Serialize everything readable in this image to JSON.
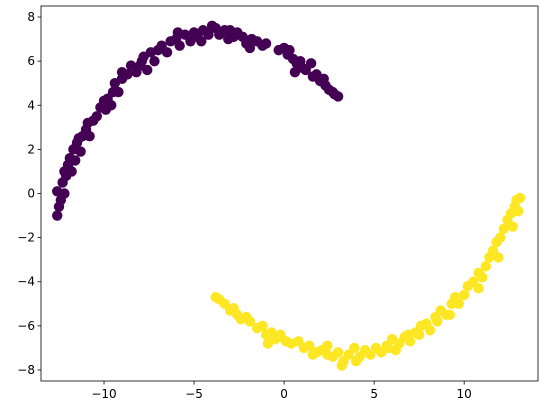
{
  "chart_data": {
    "type": "scatter",
    "title": "",
    "xlabel": "",
    "ylabel": "",
    "xlim": [
      -13.5,
      14.1
    ],
    "ylim": [
      -8.5,
      8.5
    ],
    "xticks": [
      -10,
      -5,
      0,
      5,
      10
    ],
    "yticks": [
      -8,
      -6,
      -4,
      -2,
      0,
      2,
      4,
      6,
      8
    ],
    "xtick_labels": [
      "−10",
      "−5",
      "0",
      "5",
      "10"
    ],
    "ytick_labels": [
      "−8",
      "−6",
      "−4",
      "−2",
      "0",
      "2",
      "4",
      "6",
      "8"
    ],
    "grid": false,
    "legend": "none",
    "series": [
      {
        "color": "#440154",
        "points": [
          [
            -12.6,
            -1.0
          ],
          [
            -12.5,
            -0.6
          ],
          [
            -12.4,
            -0.3
          ],
          [
            -12.6,
            0.1
          ],
          [
            -12.2,
            0.0
          ],
          [
            -12.3,
            0.5
          ],
          [
            -12.1,
            0.8
          ],
          [
            -12.2,
            1.0
          ],
          [
            -12.0,
            1.3
          ],
          [
            -11.8,
            1.0
          ],
          [
            -11.9,
            1.6
          ],
          [
            -11.6,
            1.5
          ],
          [
            -11.7,
            2.0
          ],
          [
            -11.5,
            2.3
          ],
          [
            -11.3,
            1.9
          ],
          [
            -11.2,
            2.6
          ],
          [
            -11.0,
            2.9
          ],
          [
            -10.8,
            2.6
          ],
          [
            -10.9,
            3.2
          ],
          [
            -10.6,
            3.3
          ],
          [
            -10.4,
            3.5
          ],
          [
            -10.2,
            3.9
          ],
          [
            -9.9,
            3.8
          ],
          [
            -9.8,
            4.3
          ],
          [
            -9.6,
            4.0
          ],
          [
            -9.5,
            4.6
          ],
          [
            -9.2,
            4.6
          ],
          [
            -9.4,
            5.0
          ],
          [
            -9.0,
            5.2
          ],
          [
            -8.7,
            5.4
          ],
          [
            -9.0,
            5.5
          ],
          [
            -8.5,
            5.8
          ],
          [
            -8.2,
            5.5
          ],
          [
            -8.0,
            5.8
          ],
          [
            -7.8,
            6.2
          ],
          [
            -7.6,
            5.6
          ],
          [
            -7.4,
            6.4
          ],
          [
            -7.2,
            6.0
          ],
          [
            -7.0,
            6.5
          ],
          [
            -6.8,
            6.7
          ],
          [
            -6.5,
            6.4
          ],
          [
            -6.3,
            6.9
          ],
          [
            -6.0,
            7.0
          ],
          [
            -5.8,
            6.7
          ],
          [
            -5.5,
            7.2
          ],
          [
            -5.2,
            6.9
          ],
          [
            -5.0,
            7.3
          ],
          [
            -4.8,
            7.1
          ],
          [
            -4.5,
            7.4
          ],
          [
            -4.2,
            7.2
          ],
          [
            -4.0,
            7.6
          ],
          [
            -3.8,
            7.5
          ],
          [
            -3.6,
            7.2
          ],
          [
            -3.3,
            7.4
          ],
          [
            -3.0,
            7.4
          ],
          [
            -2.8,
            7.1
          ],
          [
            -2.6,
            7.3
          ],
          [
            -2.3,
            7.1
          ],
          [
            -2.1,
            6.8
          ],
          [
            -1.8,
            7.0
          ],
          [
            -1.5,
            6.9
          ],
          [
            -1.2,
            6.7
          ],
          [
            -1.0,
            6.8
          ],
          [
            -0.3,
            6.5
          ],
          [
            0.0,
            6.6
          ],
          [
            0.2,
            6.3
          ],
          [
            0.3,
            6.5
          ],
          [
            0.5,
            6.1
          ],
          [
            0.7,
            5.9
          ],
          [
            0.9,
            6.0
          ],
          [
            1.0,
            5.7
          ],
          [
            1.2,
            5.6
          ],
          [
            1.5,
            5.9
          ],
          [
            1.6,
            5.3
          ],
          [
            1.8,
            5.4
          ],
          [
            2.0,
            5.1
          ],
          [
            2.2,
            5.2
          ],
          [
            2.3,
            4.9
          ],
          [
            2.5,
            4.7
          ],
          [
            2.7,
            4.6
          ],
          [
            2.8,
            4.5
          ],
          [
            3.0,
            4.4
          ],
          [
            -7.9,
            6.0
          ],
          [
            -5.9,
            7.3
          ],
          [
            -4.6,
            6.9
          ],
          [
            -3.1,
            7.0
          ],
          [
            -1.9,
            6.6
          ],
          [
            0.6,
            5.5
          ],
          [
            -10.0,
            4.2
          ],
          [
            -11.4,
            2.5
          ]
        ]
      },
      {
        "color": "#fde725",
        "points": [
          [
            -3.8,
            -4.7
          ],
          [
            -3.6,
            -4.8
          ],
          [
            -3.3,
            -5.0
          ],
          [
            -3.0,
            -5.3
          ],
          [
            -2.8,
            -5.2
          ],
          [
            -2.6,
            -5.5
          ],
          [
            -2.4,
            -5.7
          ],
          [
            -2.1,
            -5.6
          ],
          [
            -1.9,
            -5.8
          ],
          [
            -1.5,
            -6.1
          ],
          [
            -1.2,
            -6.0
          ],
          [
            -1.0,
            -6.4
          ],
          [
            -0.7,
            -6.3
          ],
          [
            -0.5,
            -6.6
          ],
          [
            -0.2,
            -6.5
          ],
          [
            0.1,
            -6.7
          ],
          [
            0.4,
            -6.8
          ],
          [
            0.8,
            -6.7
          ],
          [
            1.1,
            -7.0
          ],
          [
            1.4,
            -6.9
          ],
          [
            1.8,
            -7.2
          ],
          [
            2.1,
            -7.1
          ],
          [
            2.4,
            -7.3
          ],
          [
            2.7,
            -7.4
          ],
          [
            3.0,
            -7.2
          ],
          [
            3.3,
            -7.6
          ],
          [
            3.2,
            -7.8
          ],
          [
            3.6,
            -7.3
          ],
          [
            3.9,
            -7.0
          ],
          [
            4.2,
            -7.4
          ],
          [
            4.5,
            -7.1
          ],
          [
            4.8,
            -7.3
          ],
          [
            5.1,
            -7.0
          ],
          [
            5.4,
            -7.2
          ],
          [
            5.7,
            -6.9
          ],
          [
            6.0,
            -6.6
          ],
          [
            6.2,
            -7.1
          ],
          [
            6.4,
            -6.8
          ],
          [
            6.7,
            -6.5
          ],
          [
            7.0,
            -6.7
          ],
          [
            7.3,
            -6.3
          ],
          [
            7.6,
            -6.0
          ],
          [
            7.9,
            -5.9
          ],
          [
            8.1,
            -6.2
          ],
          [
            8.4,
            -5.6
          ],
          [
            8.7,
            -5.3
          ],
          [
            9.0,
            -5.5
          ],
          [
            9.3,
            -5.0
          ],
          [
            9.5,
            -4.7
          ],
          [
            9.7,
            -5.0
          ],
          [
            10.0,
            -4.6
          ],
          [
            10.2,
            -4.2
          ],
          [
            10.5,
            -4.0
          ],
          [
            10.8,
            -3.6
          ],
          [
            11.0,
            -3.8
          ],
          [
            11.2,
            -3.3
          ],
          [
            11.4,
            -2.9
          ],
          [
            11.6,
            -2.6
          ],
          [
            11.8,
            -2.2
          ],
          [
            12.0,
            -2.0
          ],
          [
            12.2,
            -1.6
          ],
          [
            12.4,
            -1.2
          ],
          [
            12.6,
            -0.9
          ],
          [
            12.8,
            -0.6
          ],
          [
            12.9,
            -0.3
          ],
          [
            13.1,
            -0.2
          ],
          [
            13.0,
            -0.8
          ],
          [
            12.7,
            -1.5
          ],
          [
            11.9,
            -2.9
          ],
          [
            10.8,
            -4.3
          ],
          [
            -0.9,
            -6.8
          ],
          [
            -0.2,
            -6.4
          ],
          [
            1.6,
            -7.3
          ],
          [
            2.4,
            -6.9
          ],
          [
            4.0,
            -7.6
          ],
          [
            5.8,
            -7.0
          ],
          [
            6.9,
            -6.4
          ],
          [
            7.5,
            -6.4
          ],
          [
            8.5,
            -5.8
          ],
          [
            9.2,
            -5.5
          ]
        ]
      }
    ]
  }
}
